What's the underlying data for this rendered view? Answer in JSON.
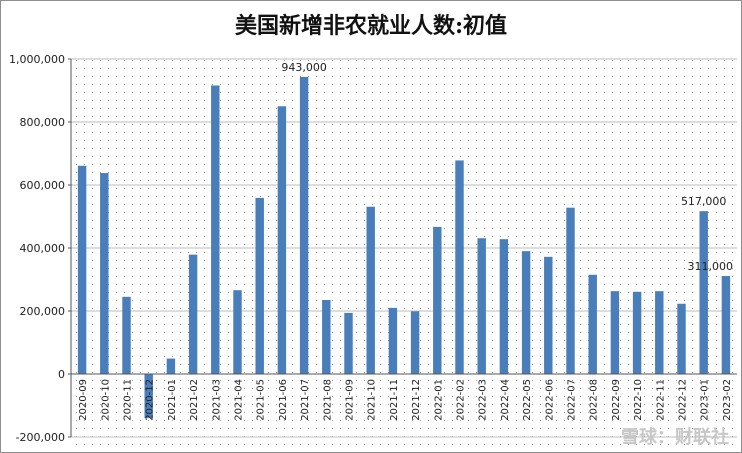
{
  "chart_data": {
    "type": "bar",
    "title": "美国新增非农就业人数:初值",
    "categories": [
      "2020-09",
      "2020-10",
      "2020-11",
      "2020-12",
      "2021-01",
      "2021-02",
      "2021-03",
      "2021-04",
      "2021-05",
      "2021-06",
      "2021-07",
      "2021-08",
      "2021-09",
      "2021-10",
      "2021-11",
      "2021-12",
      "2022-01",
      "2022-02",
      "2022-03",
      "2022-04",
      "2022-05",
      "2022-06",
      "2022-07",
      "2022-08",
      "2022-09",
      "2022-10",
      "2022-11",
      "2022-12",
      "2023-01",
      "2023-02"
    ],
    "values": [
      661000,
      638000,
      245000,
      -140000,
      49000,
      379000,
      916000,
      266000,
      559000,
      850000,
      943000,
      235000,
      194000,
      531000,
      210000,
      199000,
      467000,
      678000,
      431000,
      428000,
      390000,
      372000,
      528000,
      315000,
      263000,
      261000,
      263000,
      223000,
      517000,
      311000
    ],
    "ylim": [
      -200000,
      1000000
    ],
    "yticks": [
      -200000,
      0,
      200000,
      400000,
      600000,
      800000,
      1000000
    ],
    "ytick_labels": [
      "-200,000",
      "0",
      "200,000",
      "400,000",
      "600,000",
      "800,000",
      "1,000,000"
    ],
    "data_labels": [
      {
        "category": "2021-07",
        "text": "943,000"
      },
      {
        "category": "2023-01",
        "text": "517,000"
      },
      {
        "category": "2023-02",
        "text": "311,000"
      }
    ],
    "bar_color": "#4a7ebb",
    "grid": "dotted",
    "xlabel": "",
    "ylabel": ""
  },
  "watermark": "雪球：财联社"
}
